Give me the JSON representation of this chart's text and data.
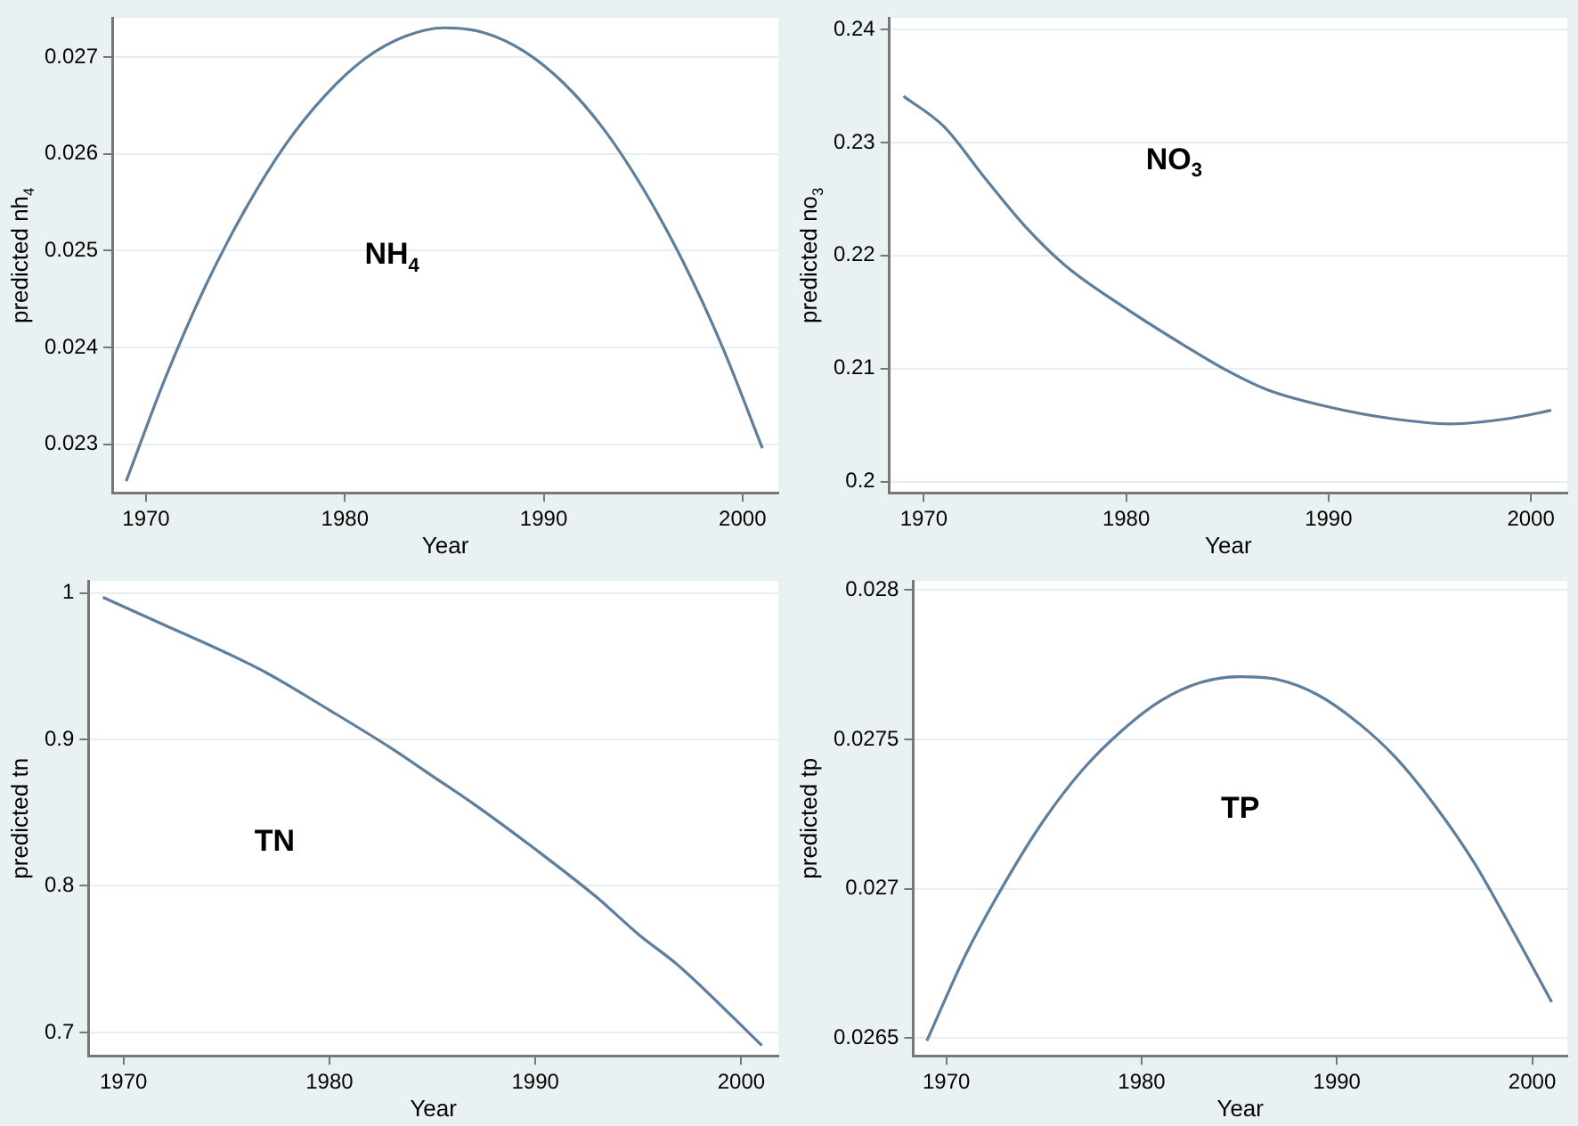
{
  "chart_data": [
    {
      "type": "line",
      "xlabel": "Year",
      "ylabel": "predicted nh$_{4}$",
      "annotations": [
        "NH$_{4}$"
      ],
      "x": [
        1969,
        1971,
        1973,
        1975,
        1977,
        1979,
        1981,
        1983,
        1985,
        1987,
        1989,
        1991,
        1993,
        1995,
        1997,
        1999,
        2001
      ],
      "values": [
        0.02262,
        0.0237,
        0.02464,
        0.02543,
        0.02609,
        0.0266,
        0.02698,
        0.02721,
        0.0273,
        0.02725,
        0.02706,
        0.02673,
        0.02626,
        0.02564,
        0.02489,
        0.024,
        0.02296
      ],
      "color": "#5f7e9c",
      "xlim": [
        1968.3,
        2001.8
      ],
      "ylim": [
        0.0225,
        0.0274
      ],
      "xticks": [
        1970,
        1980,
        1990,
        2000
      ],
      "yticks": [
        0.023,
        0.024,
        0.025,
        0.026,
        0.027
      ],
      "grid": "y",
      "marker": "none"
    },
    {
      "type": "line",
      "xlabel": "Year",
      "ylabel": "predicted no$_{3}$",
      "annotations": [
        "NO$_{3}$"
      ],
      "x": [
        1969,
        1971,
        1973,
        1975,
        1977,
        1980,
        1983,
        1985,
        1987,
        1990,
        1993,
        1996,
        1999,
        2001
      ],
      "values": [
        0.2341,
        0.2314,
        0.2269,
        0.2226,
        0.2191,
        0.2153,
        0.2119,
        0.2098,
        0.2081,
        0.2066,
        0.2056,
        0.2051,
        0.2056,
        0.2063
      ],
      "color": "#5f7e9c",
      "xlim": [
        1968.3,
        2001.8
      ],
      "ylim": [
        0.199,
        0.241
      ],
      "xticks": [
        1970,
        1980,
        1990,
        2000
      ],
      "yticks": [
        0.2,
        0.21,
        0.22,
        0.23,
        0.24
      ],
      "grid": "y",
      "marker": "none"
    },
    {
      "type": "line",
      "xlabel": "Year",
      "ylabel": "predicted tn",
      "annotations": [
        "TN"
      ],
      "x": [
        1969,
        1972,
        1975,
        1977,
        1980,
        1983,
        1985,
        1987,
        1990,
        1993,
        1995,
        1997,
        2001
      ],
      "values": [
        0.997,
        0.978,
        0.959,
        0.945,
        0.92,
        0.894,
        0.875,
        0.856,
        0.825,
        0.792,
        0.767,
        0.745,
        0.691
      ],
      "color": "#5f7e9c",
      "xlim": [
        1968.3,
        2001.8
      ],
      "ylim": [
        0.684,
        1.008
      ],
      "xticks": [
        1970,
        1980,
        1990,
        2000
      ],
      "yticks": [
        0.7,
        0.8,
        0.9,
        1
      ],
      "grid": "y",
      "marker": "none"
    },
    {
      "type": "line",
      "xlabel": "Year",
      "ylabel": "predicted tp",
      "annotations": [
        "TP"
      ],
      "x": [
        1969,
        1971,
        1973,
        1975,
        1977,
        1979,
        1981,
        1983,
        1985,
        1987,
        1989,
        1991,
        1993,
        1995,
        1997,
        1999,
        2001
      ],
      "values": [
        0.02649,
        0.02678,
        0.02702,
        0.02723,
        0.0274,
        0.02753,
        0.02763,
        0.02769,
        0.02771,
        0.0277,
        0.02765,
        0.02756,
        0.02744,
        0.02728,
        0.02709,
        0.02686,
        0.02662
      ],
      "color": "#5f7e9c",
      "xlim": [
        1968.3,
        2001.8
      ],
      "ylim": [
        0.02644,
        0.02803
      ],
      "xticks": [
        1970,
        1980,
        1990,
        2000
      ],
      "yticks": [
        0.0265,
        0.027,
        0.0275,
        0.028
      ],
      "grid": "y",
      "marker": "none"
    }
  ]
}
